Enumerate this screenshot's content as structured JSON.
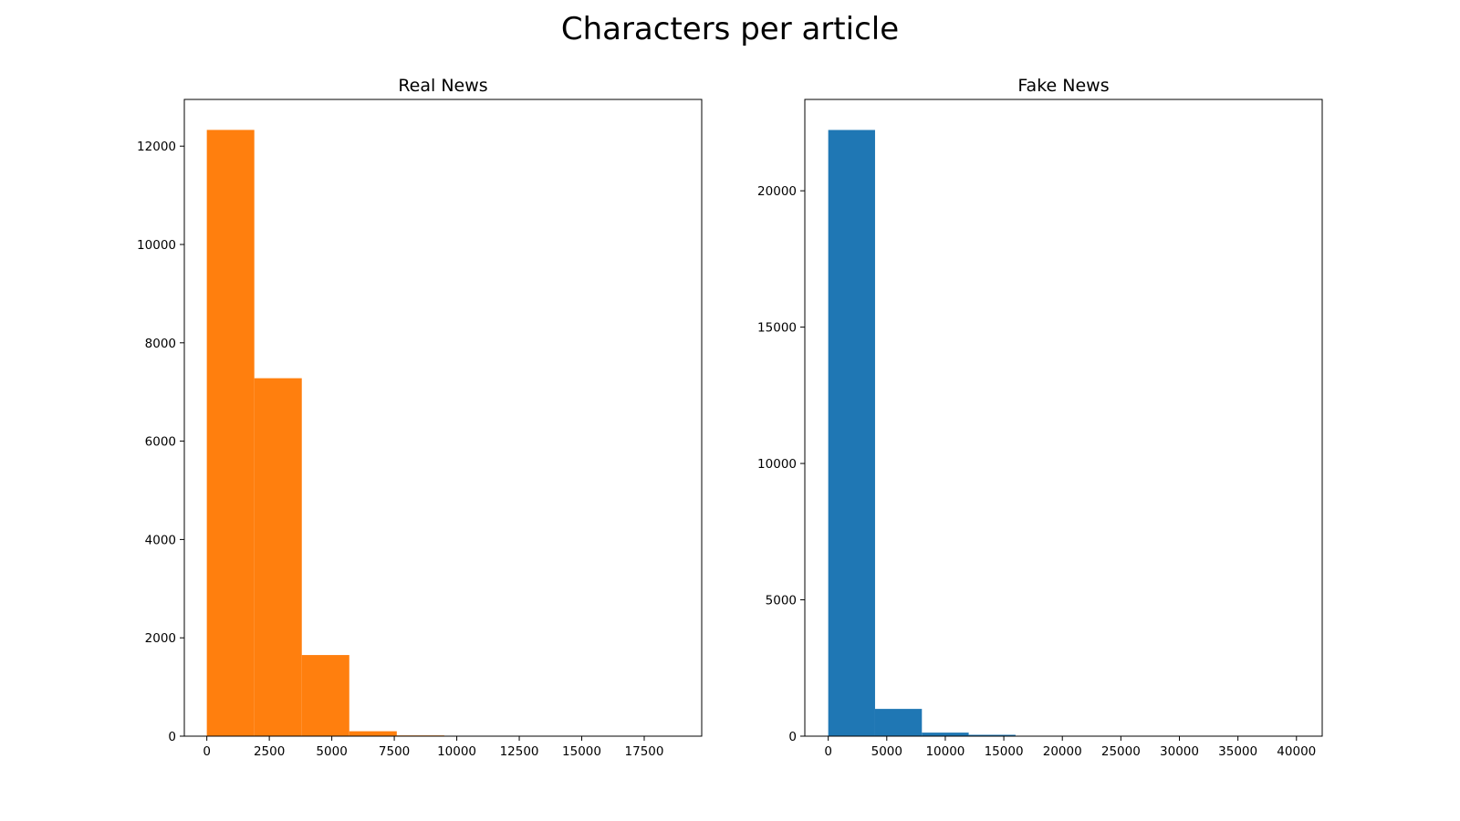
{
  "figure": {
    "title": "Characters per article"
  },
  "chart_data": [
    {
      "type": "bar",
      "title": "Real News",
      "color": "#ff7f0e",
      "xlim": [
        -900,
        19800
      ],
      "ylim": [
        0,
        12950
      ],
      "bin_edges": [
        0,
        1900,
        3800,
        5700,
        7600,
        9500,
        11400,
        13300,
        15200,
        17100,
        19000
      ],
      "values": [
        12330,
        7280,
        1650,
        100,
        15,
        5,
        3,
        2,
        1,
        1
      ],
      "x_ticks": [
        0,
        2500,
        5000,
        7500,
        10000,
        12500,
        15000,
        17500
      ],
      "y_ticks": [
        0,
        2000,
        4000,
        6000,
        8000,
        10000,
        12000
      ]
    },
    {
      "type": "bar",
      "title": "Fake News",
      "color": "#1f77b4",
      "xlim": [
        -2000,
        42200
      ],
      "ylim": [
        0,
        23350
      ],
      "bin_edges": [
        0,
        4000,
        8000,
        12000,
        16000,
        20000,
        24000,
        28000,
        32000,
        36000,
        40000
      ],
      "values": [
        22230,
        1000,
        130,
        50,
        15,
        8,
        4,
        3,
        2,
        2
      ],
      "x_ticks": [
        0,
        5000,
        10000,
        15000,
        20000,
        25000,
        30000,
        35000,
        40000
      ],
      "y_ticks": [
        0,
        5000,
        10000,
        15000,
        20000
      ]
    }
  ]
}
